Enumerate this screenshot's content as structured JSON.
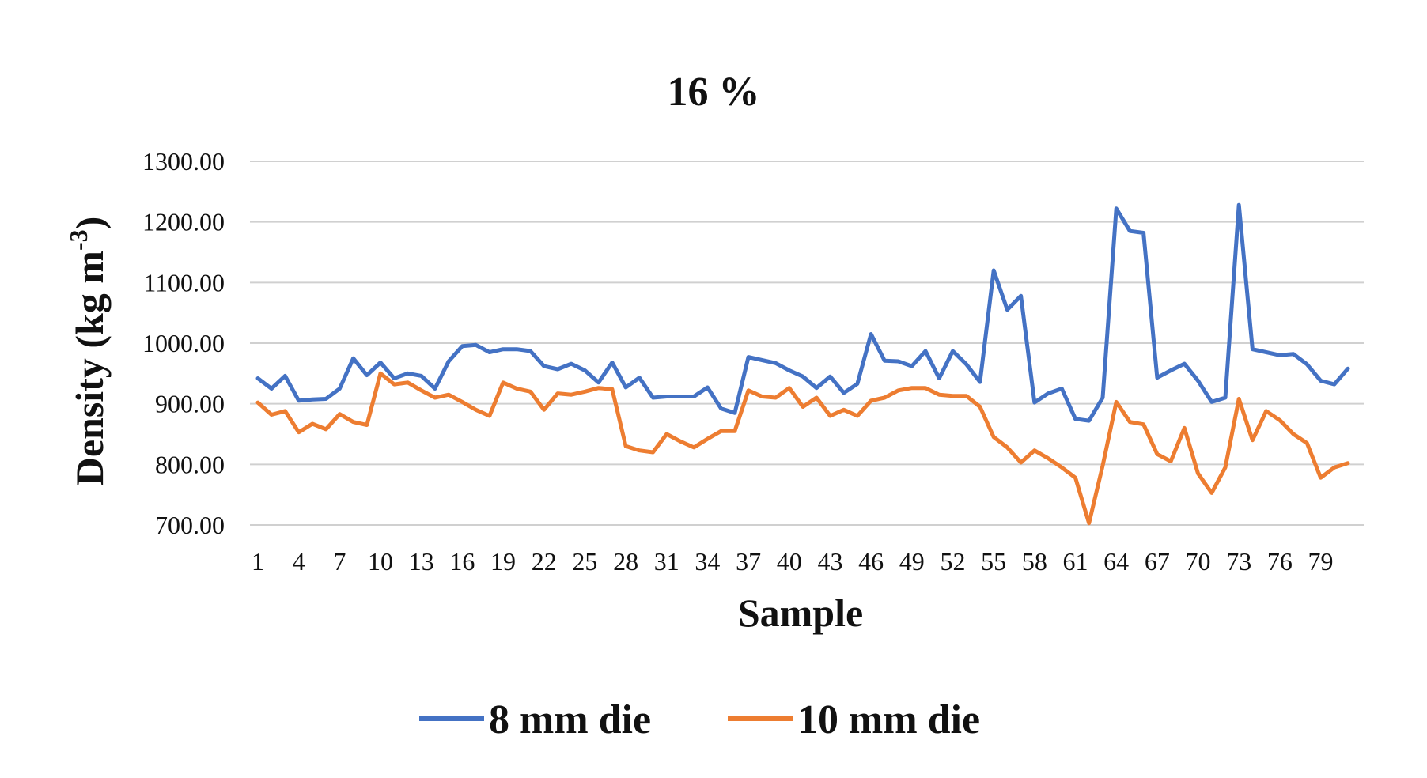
{
  "chart_data": {
    "type": "line",
    "title": "16 %",
    "xlabel": "Sample",
    "ylabel": "Density (kg m",
    "ylabel_superscript": "-3",
    "ylabel_close": ")",
    "ylim": [
      700,
      1300
    ],
    "yticks": [
      "700.00",
      "800.00",
      "900.00",
      "1000.00",
      "1100.00",
      "1200.00",
      "1300.00"
    ],
    "ytick_values": [
      700,
      800,
      900,
      1000,
      1100,
      1200,
      1300
    ],
    "xticks": [
      "1",
      "4",
      "7",
      "10",
      "13",
      "16",
      "19",
      "22",
      "25",
      "28",
      "31",
      "34",
      "37",
      "40",
      "43",
      "46",
      "49",
      "52",
      "55",
      "58",
      "61",
      "64",
      "67",
      "70",
      "73",
      "76",
      "79"
    ],
    "xtick_values": [
      1,
      4,
      7,
      10,
      13,
      16,
      19,
      22,
      25,
      28,
      31,
      34,
      37,
      40,
      43,
      46,
      49,
      52,
      55,
      58,
      61,
      64,
      67,
      70,
      73,
      76,
      79
    ],
    "x": [
      1,
      2,
      3,
      4,
      5,
      6,
      7,
      8,
      9,
      10,
      11,
      12,
      13,
      14,
      15,
      16,
      17,
      18,
      19,
      20,
      21,
      22,
      23,
      24,
      25,
      26,
      27,
      28,
      29,
      30,
      31,
      32,
      33,
      34,
      35,
      36,
      37,
      38,
      39,
      40,
      41,
      42,
      43,
      44,
      45,
      46,
      47,
      48,
      49,
      50,
      51,
      52,
      53,
      54,
      55,
      56,
      57,
      58,
      59,
      60,
      61,
      62,
      63,
      64,
      65,
      66,
      67,
      68,
      69,
      70,
      71,
      72,
      73,
      74,
      75,
      76,
      77,
      78,
      79,
      80,
      81
    ],
    "grid": true,
    "legend_position": "bottom",
    "series": [
      {
        "name": "8 mm die",
        "color": "#4472C4",
        "values": [
          942,
          925,
          946,
          905,
          907,
          908,
          925,
          975,
          947,
          968,
          942,
          950,
          946,
          925,
          970,
          995,
          997,
          985,
          990,
          990,
          987,
          962,
          957,
          966,
          955,
          935,
          968,
          927,
          943,
          910,
          912,
          912,
          912,
          927,
          892,
          885,
          977,
          972,
          967,
          955,
          945,
          926,
          945,
          918,
          933,
          1015,
          971,
          970,
          962,
          987,
          942,
          987,
          965,
          936,
          1120,
          1055,
          1078,
          902,
          917,
          925,
          875,
          872,
          910,
          1222,
          1185,
          1182,
          943,
          955,
          966,
          938,
          903,
          910,
          1228,
          990,
          985,
          980,
          982,
          965,
          938,
          932,
          958
        ]
      },
      {
        "name": "10 mm die",
        "color": "#ED7D31",
        "values": [
          902,
          882,
          888,
          853,
          867,
          858,
          883,
          870,
          865,
          950,
          932,
          935,
          922,
          910,
          915,
          903,
          890,
          880,
          935,
          925,
          920,
          890,
          917,
          915,
          920,
          926,
          924,
          830,
          823,
          820,
          850,
          838,
          828,
          842,
          855,
          855,
          922,
          912,
          910,
          926,
          895,
          910,
          880,
          890,
          880,
          905,
          910,
          922,
          926,
          926,
          915,
          913,
          913,
          895,
          845,
          828,
          803,
          823,
          810,
          795,
          778,
          703,
          798,
          903,
          870,
          866,
          817,
          805,
          860,
          785,
          753,
          795,
          908,
          840,
          888,
          873,
          850,
          835,
          778,
          795,
          802
        ]
      }
    ]
  }
}
